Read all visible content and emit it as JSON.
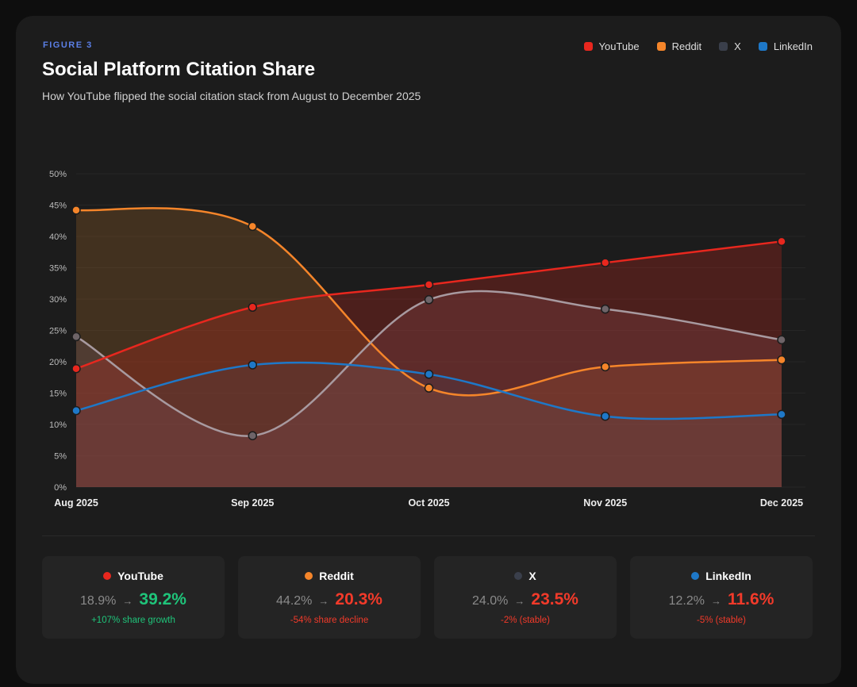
{
  "header": {
    "figure_label": "FIGURE 3",
    "title": "Social Platform Citation Share",
    "subtitle": "How YouTube flipped the social citation stack from August to December 2025"
  },
  "chart_data": {
    "type": "area",
    "title": "Social Platform Citation Share",
    "categories": [
      "Aug 2025",
      "Sep 2025",
      "Oct 2025",
      "Nov 2025",
      "Dec 2025"
    ],
    "ylim": [
      0,
      50
    ],
    "yticks": [
      "0%",
      "5%",
      "10%",
      "15%",
      "20%",
      "25%",
      "30%",
      "35%",
      "40%",
      "45%",
      "50%"
    ],
    "grid": true,
    "legend_placement": "top-right",
    "series": [
      {
        "name": "YouTube",
        "color": "#e8271e",
        "values": [
          18.9,
          28.7,
          32.3,
          35.8,
          39.2
        ]
      },
      {
        "name": "Reddit",
        "color": "#f5852a",
        "values": [
          44.2,
          41.6,
          15.8,
          19.2,
          20.3
        ]
      },
      {
        "name": "X",
        "color": "#3a3f4b",
        "line_color": "#a89aa0",
        "values": [
          24.0,
          8.2,
          29.9,
          28.4,
          23.5
        ]
      },
      {
        "name": "LinkedIn",
        "color": "#1e78c8",
        "values": [
          12.2,
          19.5,
          18.0,
          11.3,
          11.6
        ]
      }
    ]
  },
  "stats": [
    {
      "name": "YouTube",
      "color": "#e8271e",
      "from": "18.9%",
      "arrow": "→",
      "to": "39.2%",
      "to_color": "#1fc47a",
      "note": "+107% share growth",
      "note_color": "#1fc47a"
    },
    {
      "name": "Reddit",
      "color": "#f5852a",
      "from": "44.2%",
      "arrow": "→",
      "to": "20.3%",
      "to_color": "#f23a2a",
      "note": "-54% share decline",
      "note_color": "#f23a2a"
    },
    {
      "name": "X",
      "color": "#3a3f4b",
      "from": "24.0%",
      "arrow": "→",
      "to": "23.5%",
      "to_color": "#f23a2a",
      "note": "-2% (stable)",
      "note_color": "#f23a2a"
    },
    {
      "name": "LinkedIn",
      "color": "#1e78c8",
      "from": "12.2%",
      "arrow": "→",
      "to": "11.6%",
      "to_color": "#f23a2a",
      "note": "-5% (stable)",
      "note_color": "#f23a2a"
    }
  ]
}
